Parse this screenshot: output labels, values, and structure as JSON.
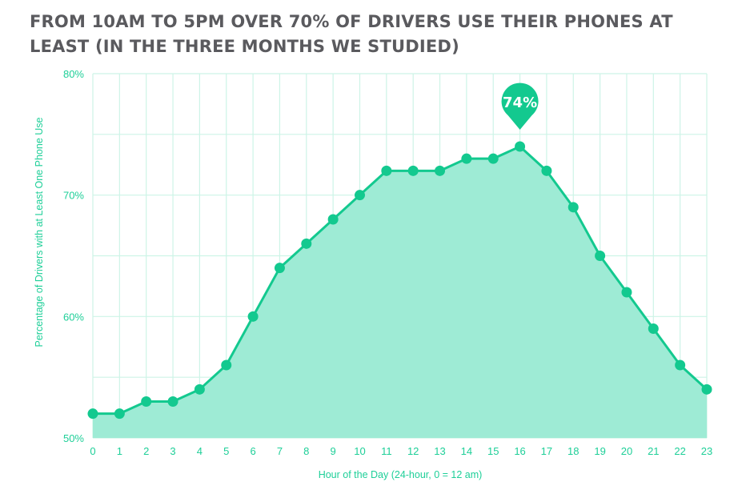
{
  "chart_data": {
    "type": "area",
    "title": "FROM 10AM TO 5PM OVER 70% OF DRIVERS USE THEIR PHONES AT LEAST (IN THE THREE MONTHS WE STUDIED)",
    "xlabel": "Hour of the Day (24-hour, 0 = 12 am)",
    "ylabel": "Percentage of Drivers with at Least One Phone Use",
    "x": [
      0,
      1,
      2,
      3,
      4,
      5,
      6,
      7,
      8,
      9,
      10,
      11,
      12,
      13,
      14,
      15,
      16,
      17,
      18,
      19,
      20,
      21,
      22,
      23
    ],
    "values": [
      52,
      52,
      53,
      53,
      54,
      56,
      60,
      64,
      66,
      68,
      70,
      72,
      72,
      72,
      73,
      73,
      74,
      72,
      69,
      65,
      62,
      59,
      56,
      54
    ],
    "ylim": [
      50,
      80
    ],
    "yticks": [
      50,
      60,
      70,
      80
    ],
    "ytick_labels": [
      "50%",
      "60%",
      "70%",
      "80%"
    ],
    "grid": true,
    "annotation": {
      "x": 16,
      "label": "74%"
    },
    "colors": {
      "line": "#13c98f",
      "fill": "#9eebd5",
      "grid": "#cdf4e7",
      "title": "#5a5a5e"
    }
  }
}
